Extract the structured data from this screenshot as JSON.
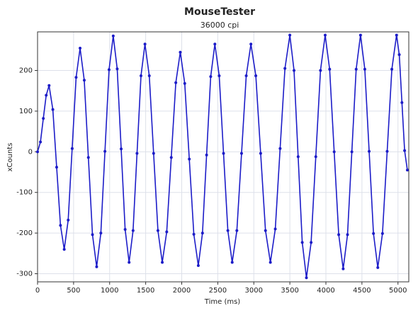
{
  "chart_data": {
    "type": "line",
    "title": "MouseTester",
    "subtitle": "36000 cpi",
    "x_label": "Time (ms)",
    "y_label": "xCounts",
    "xlim": [
      0,
      5150
    ],
    "ylim": [
      -320,
      295
    ],
    "xticks": [
      0,
      500,
      1000,
      1500,
      2000,
      2500,
      3000,
      3500,
      4000,
      4500,
      5000
    ],
    "yticks": [
      -300,
      -200,
      -100,
      0,
      100,
      200
    ],
    "grid": true,
    "x": [
      0,
      40,
      80,
      120,
      160,
      212,
      265,
      318,
      370,
      425,
      480,
      535,
      590,
      648,
      705,
      762,
      820,
      878,
      935,
      992,
      1050,
      1105,
      1160,
      1215,
      1270,
      1325,
      1380,
      1435,
      1490,
      1550,
      1610,
      1670,
      1730,
      1792,
      1855,
      1918,
      1980,
      2042,
      2105,
      2168,
      2230,
      2288,
      2345,
      2402,
      2460,
      2520,
      2580,
      2640,
      2700,
      2765,
      2830,
      2895,
      2960,
      3028,
      3095,
      3162,
      3230,
      3298,
      3365,
      3432,
      3500,
      3558,
      3615,
      3672,
      3730,
      3795,
      3860,
      3925,
      3990,
      4052,
      4115,
      4178,
      4240,
      4300,
      4360,
      4420,
      4480,
      4540,
      4600,
      4660,
      4720,
      4785,
      4850,
      4915,
      4980,
      5018,
      5055,
      5092,
      5130
    ],
    "series": [
      {
        "name": "xCounts",
        "color": "#1c1cc8",
        "values": [
          0,
          24,
          82,
          139,
          163,
          104,
          -38,
          -181,
          -240,
          -168,
          8,
          183,
          255,
          176,
          -14,
          -204,
          -283,
          -200,
          1,
          202,
          285,
          204,
          7,
          -191,
          -272,
          -194,
          -4,
          187,
          265,
          187,
          -4,
          -194,
          -272,
          -197,
          -14,
          170,
          245,
          168,
          -18,
          -203,
          -280,
          -200,
          -8,
          185,
          265,
          187,
          -4,
          -194,
          -272,
          -194,
          -4,
          187,
          265,
          187,
          -4,
          -194,
          -272,
          -190,
          8,
          205,
          287,
          200,
          -12,
          -223,
          -310,
          -223,
          -12,
          200,
          287,
          203,
          0,
          -204,
          -288,
          -204,
          0,
          203,
          287,
          203,
          1,
          -201,
          -285,
          -201,
          1,
          203,
          287,
          239,
          121,
          3,
          -45
        ]
      }
    ]
  }
}
